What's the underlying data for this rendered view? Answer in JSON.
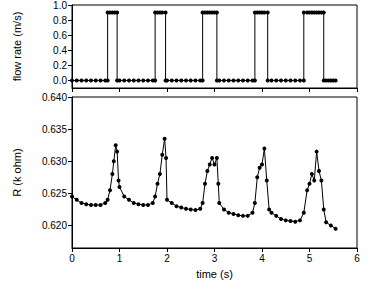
{
  "chart_data": [
    {
      "type": "line",
      "y_label": "flow rate (m/s)",
      "color": "#000000",
      "marker": "circle",
      "line_style": "solid",
      "tick_labels": "y",
      "grid": false,
      "xlim": [
        0,
        6
      ],
      "xticks": [
        0,
        1,
        2,
        3,
        4,
        5,
        6
      ],
      "ylim": [
        -0.1,
        1.0
      ],
      "yticks": [
        {
          "value": 0,
          "label": "0.0"
        },
        {
          "value": 0.2,
          "label": "0.2"
        },
        {
          "value": 0.4,
          "label": "0.4"
        },
        {
          "value": 0.6,
          "label": "0.6"
        },
        {
          "value": 0.8,
          "label": "0.8"
        },
        {
          "value": 1.0,
          "label": "1.0"
        }
      ],
      "x": [
        0,
        0.1,
        0.2,
        0.3,
        0.4,
        0.5,
        0.6,
        0.7,
        0.75,
        0.75,
        0.8,
        0.85,
        0.9,
        0.95,
        0.95,
        1.0,
        1.1,
        1.2,
        1.3,
        1.4,
        1.5,
        1.6,
        1.7,
        1.75,
        1.75,
        1.8,
        1.85,
        1.9,
        1.97,
        1.97,
        2.0,
        2.1,
        2.2,
        2.3,
        2.4,
        2.5,
        2.6,
        2.7,
        2.75,
        2.75,
        2.8,
        2.85,
        2.9,
        2.95,
        3.0,
        3.05,
        3.05,
        3.1,
        3.2,
        3.3,
        3.4,
        3.5,
        3.6,
        3.7,
        3.8,
        3.85,
        3.85,
        3.9,
        3.95,
        4.0,
        4.05,
        4.12,
        4.12,
        4.2,
        4.3,
        4.4,
        4.5,
        4.6,
        4.7,
        4.8,
        4.88,
        4.88,
        4.95,
        5.0,
        5.05,
        5.1,
        5.15,
        5.2,
        5.25,
        5.3,
        5.3,
        5.35,
        5.4,
        5.45,
        5.5,
        5.55
      ],
      "values": [
        0,
        0,
        0,
        0,
        0,
        0,
        0,
        0,
        0,
        0.9,
        0.9,
        0.9,
        0.9,
        0.9,
        0,
        0,
        0,
        0,
        0,
        0,
        0,
        0,
        0,
        0,
        0.9,
        0.9,
        0.9,
        0.9,
        0.9,
        0,
        0,
        0,
        0,
        0,
        0,
        0,
        0,
        0,
        0,
        0.9,
        0.9,
        0.9,
        0.9,
        0.9,
        0.9,
        0.9,
        0,
        0,
        0,
        0,
        0,
        0,
        0,
        0,
        0,
        0,
        0.9,
        0.9,
        0.9,
        0.9,
        0.9,
        0.9,
        0,
        0,
        0,
        0,
        0,
        0,
        0,
        0,
        0,
        0.9,
        0.9,
        0.9,
        0.9,
        0.9,
        0.9,
        0.9,
        0.9,
        0.9,
        0,
        0,
        0,
        0,
        0,
        0
      ]
    },
    {
      "type": "line",
      "x_label": "time (s)",
      "y_label": "R (k ohm)",
      "color": "#000000",
      "marker": "circle",
      "line_style": "solid",
      "grid": false,
      "xlim": [
        0,
        6
      ],
      "xticks": [
        0,
        1,
        2,
        3,
        4,
        5,
        6
      ],
      "ylim": [
        0.6165,
        0.64
      ],
      "yticks": [
        {
          "value": 0.62,
          "label": "0.620"
        },
        {
          "value": 0.625,
          "label": "0.625"
        },
        {
          "value": 0.63,
          "label": "0.630"
        },
        {
          "value": 0.635,
          "label": "0.635"
        },
        {
          "value": 0.64,
          "label": "0.640"
        }
      ],
      "x": [
        0,
        0.1,
        0.2,
        0.3,
        0.4,
        0.5,
        0.6,
        0.7,
        0.75,
        0.8,
        0.85,
        0.88,
        0.92,
        0.95,
        0.98,
        1.0,
        1.1,
        1.2,
        1.3,
        1.4,
        1.5,
        1.6,
        1.7,
        1.75,
        1.8,
        1.85,
        1.9,
        1.95,
        1.98,
        2.0,
        2.1,
        2.2,
        2.3,
        2.4,
        2.5,
        2.6,
        2.7,
        2.75,
        2.8,
        2.85,
        2.9,
        2.95,
        3.0,
        3.05,
        3.08,
        3.1,
        3.2,
        3.3,
        3.4,
        3.5,
        3.6,
        3.7,
        3.8,
        3.85,
        3.9,
        3.95,
        4.0,
        4.05,
        4.1,
        4.15,
        4.2,
        4.3,
        4.4,
        4.5,
        4.6,
        4.7,
        4.8,
        4.88,
        4.95,
        5.0,
        5.05,
        5.1,
        5.15,
        5.2,
        5.25,
        5.3,
        5.35,
        5.45,
        5.55
      ],
      "values": [
        0.6245,
        0.624,
        0.6235,
        0.6233,
        0.6232,
        0.6232,
        0.6232,
        0.6235,
        0.624,
        0.6255,
        0.628,
        0.63,
        0.6325,
        0.6315,
        0.627,
        0.626,
        0.6245,
        0.624,
        0.6235,
        0.6233,
        0.6232,
        0.6232,
        0.6235,
        0.6245,
        0.6265,
        0.628,
        0.631,
        0.6335,
        0.6305,
        0.624,
        0.6235,
        0.623,
        0.6228,
        0.6226,
        0.6225,
        0.6224,
        0.6226,
        0.6235,
        0.6265,
        0.6285,
        0.6295,
        0.6305,
        0.6295,
        0.6305,
        0.6265,
        0.6235,
        0.6225,
        0.622,
        0.6218,
        0.6216,
        0.6215,
        0.6215,
        0.622,
        0.6235,
        0.6275,
        0.629,
        0.6295,
        0.632,
        0.627,
        0.6225,
        0.622,
        0.6215,
        0.621,
        0.6208,
        0.6207,
        0.6206,
        0.6208,
        0.622,
        0.6255,
        0.6265,
        0.628,
        0.627,
        0.6315,
        0.6285,
        0.627,
        0.6225,
        0.6205,
        0.62,
        0.6195
      ]
    }
  ]
}
